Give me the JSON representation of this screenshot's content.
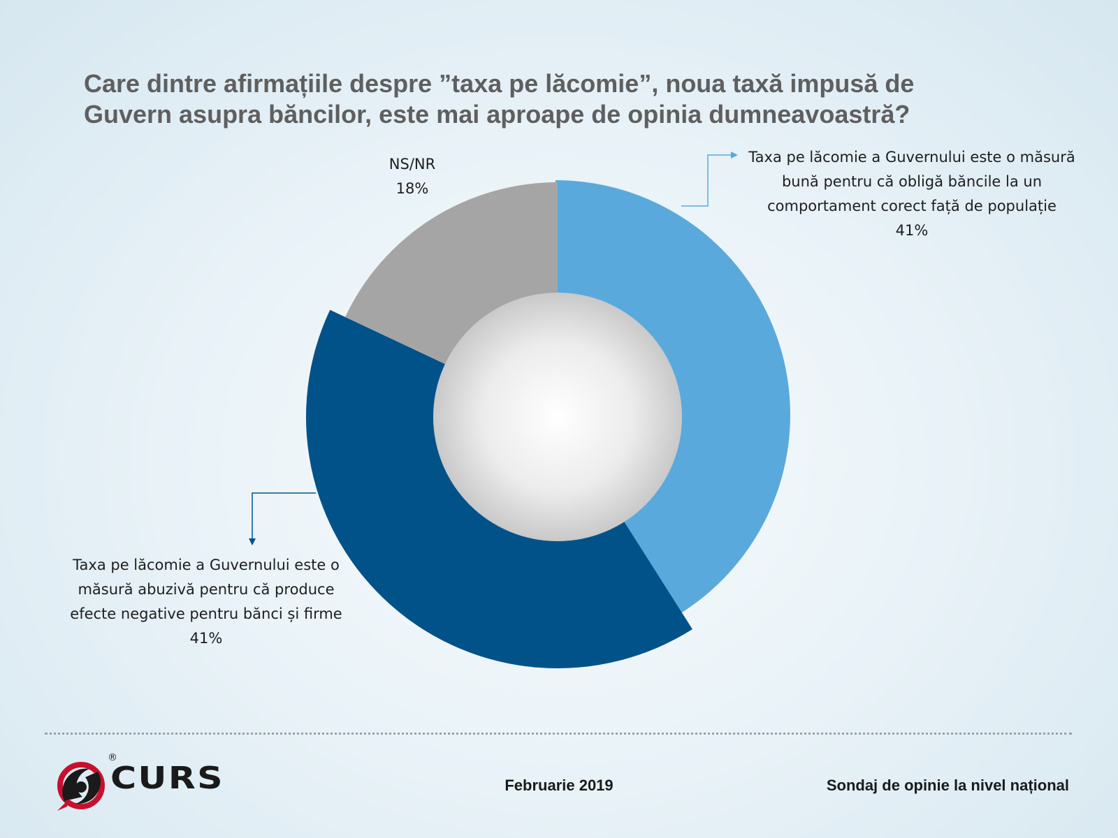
{
  "chart_data": {
    "type": "pie",
    "title_lines": [
      "Care dintre afirmațiile despre ”taxa pe lăcomie”, noua taxă impusă de",
      "Guvern asupra băncilor, este mai aproape de opinia dumneavoastră?"
    ],
    "hole": true,
    "slices": [
      {
        "label_lines": [
          "Taxa pe lăcomie a Guvernului este o măsură",
          "bună pentru că obligă băncile la un",
          "comportament corect față de populație"
        ],
        "value": 41,
        "value_label": "41%",
        "color": "#5aa9dc"
      },
      {
        "label_lines": [
          "Taxa pe lăcomie a Guvernului este o",
          "măsură abuzivă pentru că produce",
          "efecte negative pentru bănci și firme"
        ],
        "value": 41,
        "value_label": "41%",
        "color": "#02528a"
      },
      {
        "label_lines": [
          "NS/NR"
        ],
        "value": 18,
        "value_label": "18%",
        "color": "#a5a5a5"
      }
    ]
  },
  "footer": {
    "logo_text": "CURS",
    "logo_mark": "®",
    "date": "Februarie 2019",
    "source": "Sondaj de opinie la nivel național"
  }
}
